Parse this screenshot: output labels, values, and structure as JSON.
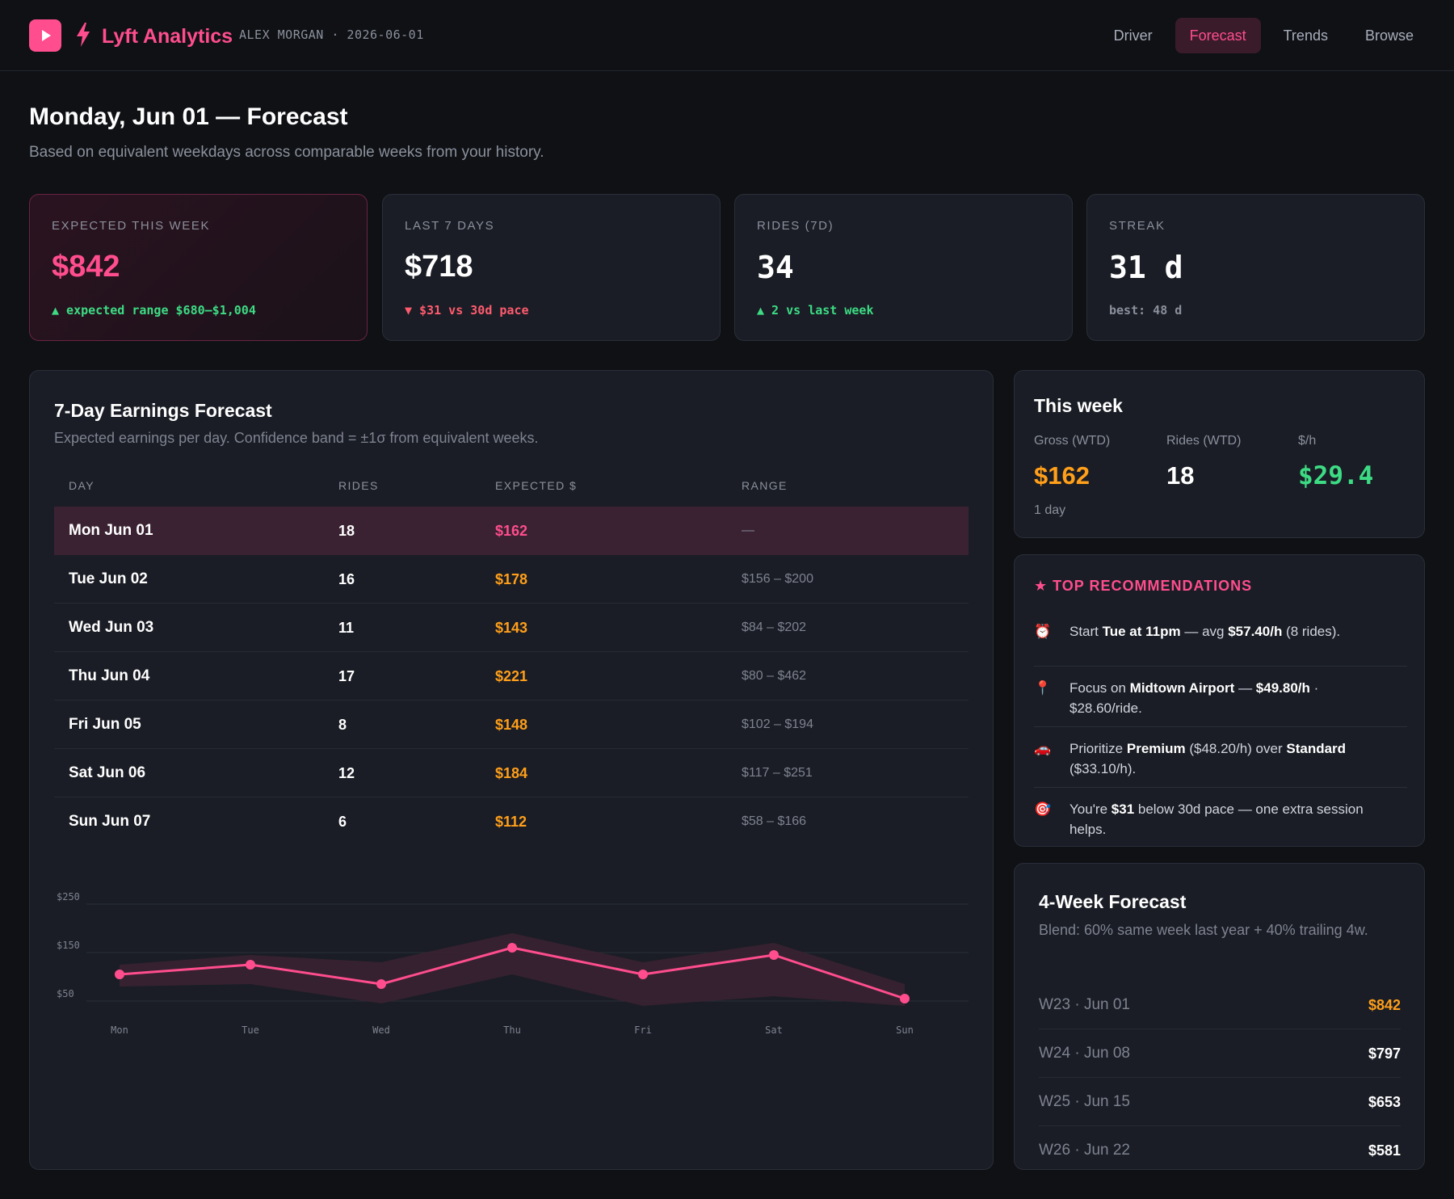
{
  "header": {
    "brand": "Lyft Analytics",
    "user_line": "ALEX MORGAN · 2026-06-01",
    "nav": [
      "Driver",
      "Forecast",
      "Trends",
      "Browse"
    ],
    "active_nav": "Forecast"
  },
  "page": {
    "title": "Monday, Jun 01 — Forecast",
    "subtitle": "Based on equivalent weekdays across comparable weeks from your history."
  },
  "kpis": [
    {
      "label": "EXPECTED THIS WEEK",
      "value": "$842",
      "delta": "▲ expected range $680–$1,004",
      "tone": "up"
    },
    {
      "label": "LAST 7 DAYS",
      "value": "$718",
      "delta": "▼ $31 vs 30d pace",
      "tone": "down"
    },
    {
      "label": "RIDES (7D)",
      "value": "34",
      "delta": "▲ 2 vs last week",
      "tone": "up"
    },
    {
      "label": "STREAK",
      "value": "31 d",
      "delta": "best: 48 d",
      "tone": "muted"
    }
  ],
  "forecast": {
    "title": "7-Day Earnings Forecast",
    "subtitle": "Expected earnings per day. Confidence band = ±1σ from equivalent weeks.",
    "columns": [
      "DAY",
      "RIDES",
      "EXPECTED $",
      "RANGE"
    ],
    "rows": [
      {
        "day": "Mon Jun 01",
        "rides": "18",
        "expected": "$162",
        "range": "—"
      },
      {
        "day": "Tue Jun 02",
        "rides": "16",
        "expected": "$178",
        "range": "$156 – $200"
      },
      {
        "day": "Wed Jun 03",
        "rides": "11",
        "expected": "$143",
        "range": "$84 – $202"
      },
      {
        "day": "Thu Jun 04",
        "rides": "17",
        "expected": "$221",
        "range": "$80 – $462"
      },
      {
        "day": "Fri Jun 05",
        "rides": "8",
        "expected": "$148",
        "range": "$102 – $194"
      },
      {
        "day": "Sat Jun 06",
        "rides": "12",
        "expected": "$184",
        "range": "$117 – $251"
      },
      {
        "day": "Sun Jun 07",
        "rides": "6",
        "expected": "$112",
        "range": "$58 – $166"
      }
    ]
  },
  "chart_data": {
    "type": "line",
    "categories": [
      "Mon",
      "Tue",
      "Wed",
      "Thu",
      "Fri",
      "Sat",
      "Sun"
    ],
    "series": [
      {
        "values": [
          105,
          125,
          85,
          160,
          105,
          145,
          55
        ]
      }
    ],
    "band_low": [
      80,
      85,
      45,
      105,
      40,
      60,
      40
    ],
    "band_high": [
      125,
      145,
      130,
      190,
      130,
      170,
      85
    ],
    "yticks": [
      "$250",
      "$150",
      "$50"
    ],
    "ylim": [
      50,
      250
    ],
    "line_color": "#ff4d8d",
    "band_color": "#3a2232"
  },
  "this_week": {
    "title": "This week",
    "gross_label": "Gross (WTD)",
    "gross_value": "$162",
    "rides_label": "Rides (WTD)",
    "rides_value": "18",
    "rate_label": "$/h",
    "rate_value": "$29.4",
    "note": "1 day"
  },
  "recommendations": {
    "title": "★ TOP RECOMMENDATIONS",
    "items": [
      {
        "icon": "alarm-clock-icon",
        "glyph": "⏰",
        "pre": "Start ",
        "b1": "Tue at 11pm",
        "mid": " — avg ",
        "b2": "$57.40/h",
        "post": " (8 rides)."
      },
      {
        "icon": "pin-icon",
        "glyph": "📍",
        "pre": "Focus on ",
        "b1": "Midtown Airport",
        "mid": " — ",
        "b2": "$49.80/h",
        "post": " · $28.60/ride."
      },
      {
        "icon": "car-icon",
        "glyph": "🚗",
        "pre": "Prioritize ",
        "b1": "Premium",
        "mid": " ($48.20/h) over ",
        "b2": "Standard",
        "post": " ($33.10/h)."
      },
      {
        "icon": "target-icon",
        "glyph": "🎯",
        "pre": "You're ",
        "b1": "$31",
        "mid": " below 30d pace — one extra session helps.",
        "b2": "",
        "post": ""
      }
    ]
  },
  "four_week": {
    "title": "4-Week Forecast",
    "subtitle": "Blend: 60% same week last year + 40% trailing 4w.",
    "rows": [
      {
        "week": "W23 · Jun 01",
        "value": "$842"
      },
      {
        "week": "W24 · Jun 08",
        "value": "$797"
      },
      {
        "week": "W25 · Jun 15",
        "value": "$653"
      },
      {
        "week": "W26 · Jun 22",
        "value": "$581"
      }
    ]
  },
  "colors": {
    "accent": "#ff4d8d",
    "orange": "#ff9f1a",
    "green": "#3ddc84",
    "red": "#ff5b6e"
  }
}
